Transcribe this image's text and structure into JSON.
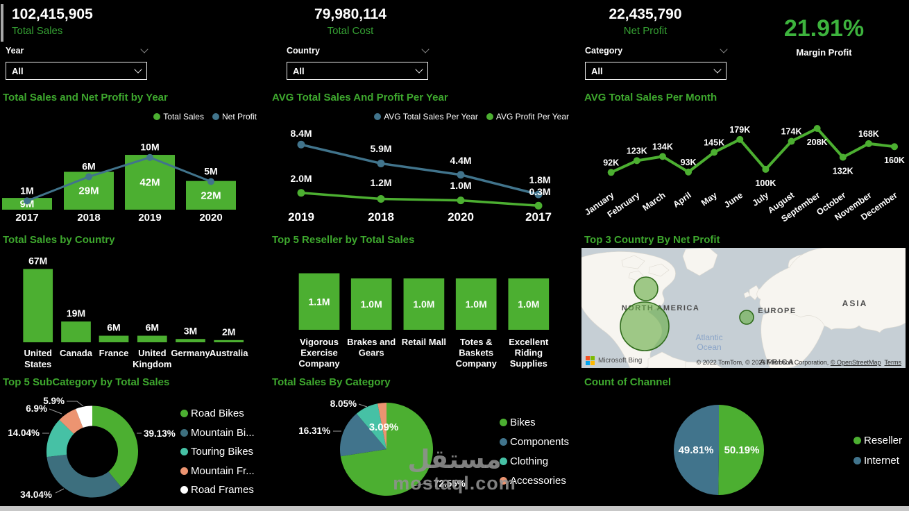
{
  "kpis": [
    {
      "value": "102,415,905",
      "label": "Total Sales"
    },
    {
      "value": "79,980,114",
      "label": "Total Cost"
    },
    {
      "value": "22,435,790",
      "label": "Net Profit"
    }
  ],
  "margin": {
    "value": "21.91%",
    "label": "Margin Profit"
  },
  "slicers": [
    {
      "label": "Year",
      "value": "All"
    },
    {
      "label": "Country",
      "value": "All"
    },
    {
      "label": "Category",
      "value": "All"
    }
  ],
  "colors": {
    "background": "#000000",
    "green": "#4CAF31",
    "steel_blue": "#41748C",
    "slate": "#3D6F7E",
    "teal": "#46C1A5",
    "salmon": "#EC9471",
    "white": "#FFFFFF",
    "title_green": "#3EA82E",
    "kpi_green": "#35A033",
    "margin_green": "#3DB33D",
    "map_water": "#C6CFD5",
    "map_land": "#F7F5F0",
    "bubble_stroke": "#2F6B1B"
  },
  "chart_data": [
    {
      "id": "combo_year",
      "type": "bar",
      "title": "Total Sales and Net Profit by Year",
      "categories": [
        "2017",
        "2018",
        "2019",
        "2020"
      ],
      "series": [
        {
          "name": "Total Sales",
          "kind": "bar",
          "values_m": [
            9,
            29,
            42,
            22
          ],
          "labels": [
            "9M",
            "29M",
            "42M",
            "22M"
          ],
          "color_key": "green"
        },
        {
          "name": "Net Profit",
          "kind": "line",
          "values_m": [
            1,
            6,
            10,
            5
          ],
          "labels": [
            "1M",
            "6M",
            "10M",
            "5M"
          ],
          "color_key": "steel_blue"
        }
      ],
      "legend_position": "top-right"
    },
    {
      "id": "avg_year",
      "type": "line",
      "title": "AVG Total Sales And Profit Per Year",
      "categories": [
        "2019",
        "2018",
        "2020",
        "2017"
      ],
      "series": [
        {
          "name": "AVG Total Sales Per Year",
          "values_m": [
            8.4,
            5.9,
            4.4,
            1.8
          ],
          "labels": [
            "8.4M",
            "5.9M",
            "4.4M",
            "1.8M"
          ],
          "color_key": "steel_blue"
        },
        {
          "name": "AVG Profit Per Year",
          "values_m": [
            2.0,
            1.2,
            1.0,
            0.3
          ],
          "labels": [
            "2.0M",
            "1.2M",
            "1.0M",
            "0.3M"
          ],
          "color_key": "green"
        }
      ],
      "legend_position": "top-right"
    },
    {
      "id": "avg_month",
      "type": "line",
      "title": "AVG Total Sales Per Month",
      "categories": [
        "January",
        "February",
        "March",
        "April",
        "May",
        "June",
        "July",
        "August",
        "September",
        "October",
        "November",
        "December"
      ],
      "values_k": [
        92,
        123,
        134,
        93,
        145,
        179,
        100,
        174,
        208,
        132,
        168,
        160
      ],
      "labels": [
        "92K",
        "123K",
        "134K",
        "93K",
        "145K",
        "179K",
        "100K",
        "174K",
        "208K",
        "132K",
        "168K",
        "160K"
      ],
      "color_key": "green"
    },
    {
      "id": "country_bars",
      "type": "bar",
      "title": "Total Sales by Country",
      "categories": [
        [
          "United",
          "States"
        ],
        [
          "Canada"
        ],
        [
          "France"
        ],
        [
          "United",
          "Kingdom"
        ],
        [
          "Germany"
        ],
        [
          "Australia"
        ]
      ],
      "values_m": [
        67,
        19,
        6,
        6,
        3,
        2
      ],
      "labels": [
        "67M",
        "19M",
        "6M",
        "6M",
        "3M",
        "2M"
      ],
      "color_key": "green"
    },
    {
      "id": "reseller_bars",
      "type": "bar",
      "title": "Top 5 Reseller by Total Sales",
      "categories": [
        [
          "Vigorous",
          "Exercise",
          "Company"
        ],
        [
          "Brakes and",
          "Gears"
        ],
        [
          "Retail Mall"
        ],
        [
          "Totes &",
          "Baskets",
          "Company"
        ],
        [
          "Excellent",
          "Riding",
          "Supplies"
        ]
      ],
      "values_m": [
        1.1,
        1.0,
        1.0,
        1.0,
        1.0
      ],
      "labels": [
        "1.1M",
        "1.0M",
        "1.0M",
        "1.0M",
        "1.0M"
      ],
      "color_key": "green"
    },
    {
      "id": "map_net_profit",
      "type": "map",
      "title": "Top 3 Country By Net Profit",
      "regions": [
        "NORTH AMERICA",
        "EUROPE",
        "ASIA",
        "AFRICA"
      ],
      "ocean_lines": [
        "Atlantic",
        "Ocean"
      ],
      "bubbles": [
        {
          "rel_size": "large"
        },
        {
          "rel_size": "medium"
        },
        {
          "rel_size": "small"
        }
      ],
      "attribution_prefix": "© 2022 TomTom, © 2023 Microsoft Corporation, ",
      "attribution_osm": "© OpenStreetMap",
      "terms_label": "Terms",
      "brand": "Microsoft Bing"
    },
    {
      "id": "subcategory_donut",
      "type": "pie",
      "title": "Top 5 SubCategory by Total Sales",
      "slices": [
        {
          "label": "Road Bikes",
          "pct": 39.13,
          "pct_label": "39.13%",
          "color_key": "green"
        },
        {
          "label": "Mountain Bi...",
          "pct": 34.04,
          "pct_label": "34.04%",
          "color_key": "slate"
        },
        {
          "label": "Touring Bikes",
          "pct": 14.04,
          "pct_label": "14.04%",
          "color_key": "teal"
        },
        {
          "label": "Mountain Fr...",
          "pct": 6.9,
          "pct_label": "6.9%",
          "color_key": "salmon"
        },
        {
          "label": "Road Frames",
          "pct": 5.9,
          "pct_label": "5.9%",
          "color_key": "white"
        }
      ],
      "legend_position": "right"
    },
    {
      "id": "category_pie",
      "type": "pie",
      "title": "Total Sales By Category",
      "slices": [
        {
          "label": "Bikes",
          "pct": 72.55,
          "pct_label": "72.55%",
          "color_key": "green"
        },
        {
          "label": "Components",
          "pct": 16.31,
          "pct_label": "16.31%",
          "color_key": "steel_blue"
        },
        {
          "label": "Clothing",
          "pct": 8.05,
          "pct_label": "8.05%",
          "color_key": "teal"
        },
        {
          "label": "Accessories",
          "pct": 3.09,
          "pct_label": "3.09%",
          "color_key": "salmon"
        }
      ],
      "legend_position": "right"
    },
    {
      "id": "channel_pie",
      "type": "pie",
      "title": "Count of Channel",
      "slices": [
        {
          "label": "Reseller",
          "pct": 50.19,
          "pct_label": "50.19%",
          "color_key": "green"
        },
        {
          "label": "Internet",
          "pct": 49.81,
          "pct_label": "49.81%",
          "color_key": "steel_blue"
        }
      ],
      "legend_position": "right"
    }
  ],
  "watermark": {
    "title_ar": "مستقل",
    "domain": "mostaql.com"
  }
}
